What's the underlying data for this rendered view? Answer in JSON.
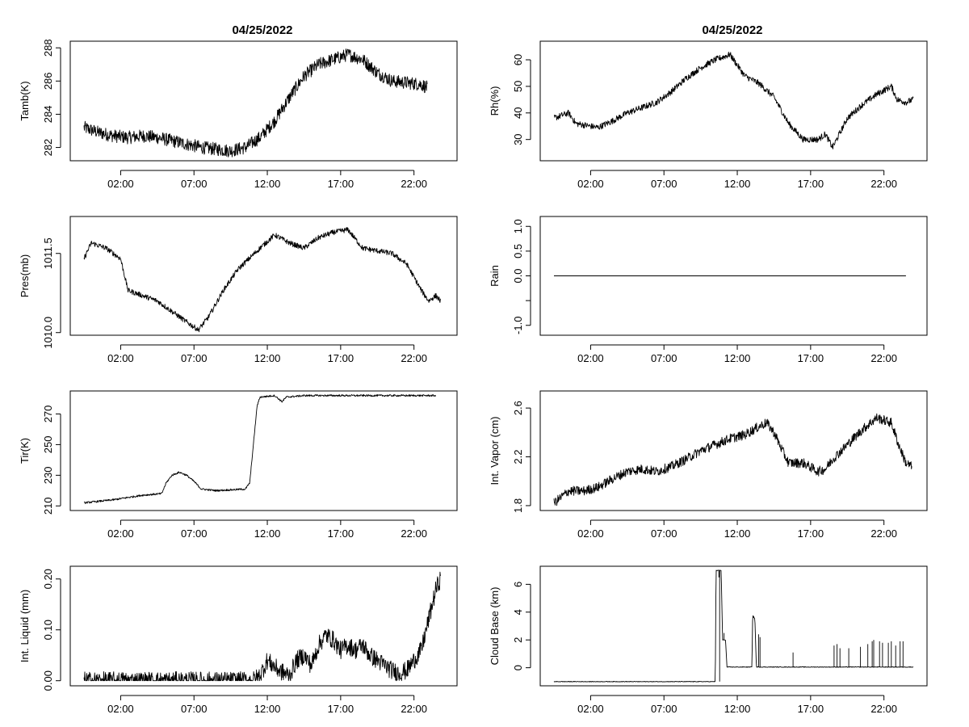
{
  "figure": {
    "date_title": "04/25/2022"
  },
  "chart_data": [
    {
      "id": "tamb",
      "type": "line",
      "title": "04/25/2022",
      "ylabel": "Tamb(K)",
      "ylim": [
        281.2,
        288.4
      ],
      "yticks": [
        282,
        284,
        286,
        288
      ],
      "xticks": [
        "02:00",
        "07:00",
        "12:00",
        "17:00",
        "22:00"
      ],
      "xrange_hours": [
        0,
        24
      ],
      "series": [
        {
          "name": "Tamb",
          "noise": 0.4,
          "points": [
            [
              0,
              283.2
            ],
            [
              1,
              282.9
            ],
            [
              2,
              282.7
            ],
            [
              3,
              282.6
            ],
            [
              4,
              282.7
            ],
            [
              5,
              282.6
            ],
            [
              6,
              282.4
            ],
            [
              7,
              282.2
            ],
            [
              8,
              282.0
            ],
            [
              9,
              281.9
            ],
            [
              10,
              281.8
            ],
            [
              11,
              282.0
            ],
            [
              12,
              282.6
            ],
            [
              13,
              283.6
            ],
            [
              14,
              285.0
            ],
            [
              15,
              286.3
            ],
            [
              16,
              287.0
            ],
            [
              17,
              287.3
            ],
            [
              18,
              287.6
            ],
            [
              19,
              287.3
            ],
            [
              20,
              286.5
            ],
            [
              21,
              286.0
            ],
            [
              22,
              285.9
            ],
            [
              23,
              285.8
            ],
            [
              23.4,
              285.6
            ]
          ]
        }
      ]
    },
    {
      "id": "rh",
      "type": "line",
      "title": "04/25/2022",
      "ylabel": "Rh(%)",
      "ylim": [
        22,
        67
      ],
      "yticks": [
        30,
        40,
        50,
        60
      ],
      "xticks": [
        "02:00",
        "07:00",
        "12:00",
        "17:00",
        "22:00"
      ],
      "xrange_hours": [
        0,
        24
      ],
      "series": [
        {
          "name": "Rh",
          "noise": 1.2,
          "points": [
            [
              0,
              38
            ],
            [
              1,
              40
            ],
            [
              1.5,
              36
            ],
            [
              3,
              34.5
            ],
            [
              4,
              37
            ],
            [
              5,
              40
            ],
            [
              6,
              42
            ],
            [
              7,
              44
            ],
            [
              8,
              48
            ],
            [
              9,
              53
            ],
            [
              10,
              57
            ],
            [
              11,
              60
            ],
            [
              12,
              62
            ],
            [
              12.5,
              58
            ],
            [
              13,
              54
            ],
            [
              14,
              51
            ],
            [
              15,
              46
            ],
            [
              16,
              36
            ],
            [
              17,
              30
            ],
            [
              18,
              30
            ],
            [
              18.5,
              32
            ],
            [
              19,
              27
            ],
            [
              20,
              38
            ],
            [
              21,
              43
            ],
            [
              22,
              47
            ],
            [
              23,
              50
            ],
            [
              23.4,
              45
            ],
            [
              24,
              44
            ],
            [
              24.5,
              45
            ]
          ]
        }
      ]
    },
    {
      "id": "pres",
      "type": "line",
      "title": "",
      "ylabel": "Pres(mb)",
      "ylim": [
        1009.95,
        1012.2
      ],
      "yticks": [
        1010.0,
        1011.5
      ],
      "ytick_labels": [
        "1010.0",
        "1011.5"
      ],
      "xticks": [
        "02:00",
        "07:00",
        "12:00",
        "17:00",
        "22:00"
      ],
      "xrange_hours": [
        0,
        24
      ],
      "series": [
        {
          "name": "Pres",
          "noise": 0.05,
          "points": [
            [
              0,
              1011.4
            ],
            [
              0.5,
              1011.7
            ],
            [
              1.5,
              1011.6
            ],
            [
              2.5,
              1011.4
            ],
            [
              3,
              1010.8
            ],
            [
              4,
              1010.7
            ],
            [
              5,
              1010.6
            ],
            [
              6,
              1010.4
            ],
            [
              7,
              1010.2
            ],
            [
              7.8,
              1010.05
            ],
            [
              8.5,
              1010.3
            ],
            [
              9.5,
              1010.8
            ],
            [
              10.5,
              1011.2
            ],
            [
              12,
              1011.6
            ],
            [
              13,
              1011.85
            ],
            [
              14,
              1011.7
            ],
            [
              15,
              1011.6
            ],
            [
              16,
              1011.8
            ],
            [
              17,
              1011.9
            ],
            [
              18,
              1011.95
            ],
            [
              19,
              1011.6
            ],
            [
              20,
              1011.55
            ],
            [
              21,
              1011.5
            ],
            [
              22,
              1011.3
            ],
            [
              23,
              1010.8
            ],
            [
              23.5,
              1010.6
            ],
            [
              24,
              1010.7
            ],
            [
              24.3,
              1010.6
            ]
          ]
        }
      ]
    },
    {
      "id": "rain",
      "type": "line",
      "title": "",
      "ylabel": "Rain",
      "ylim": [
        -1.2,
        1.2
      ],
      "yticks": [
        -1.0,
        -0.5,
        0.0,
        0.5,
        1.0
      ],
      "ytick_labels": [
        "-1.0",
        "",
        "0.0",
        "0.5",
        "1.0"
      ],
      "xticks": [
        "02:00",
        "07:00",
        "12:00",
        "17:00",
        "22:00"
      ],
      "xrange_hours": [
        0,
        24
      ],
      "series": [
        {
          "name": "Rain",
          "noise": 0,
          "points": [
            [
              0,
              0
            ],
            [
              24,
              0
            ]
          ]
        }
      ]
    },
    {
      "id": "tir",
      "type": "line",
      "title": "",
      "ylabel": "Tir(K)",
      "ylim": [
        207,
        285
      ],
      "yticks": [
        210,
        230,
        250,
        270
      ],
      "xticks": [
        "02:00",
        "07:00",
        "12:00",
        "17:00",
        "22:00"
      ],
      "xrange_hours": [
        0,
        24
      ],
      "series": [
        {
          "name": "Tir",
          "noise": 0.6,
          "points": [
            [
              0,
              212
            ],
            [
              2,
              214
            ],
            [
              4,
              217
            ],
            [
              5.3,
              218
            ],
            [
              5.6,
              225
            ],
            [
              6,
              230
            ],
            [
              6.5,
              232
            ],
            [
              7,
              230
            ],
            [
              7.5,
              226
            ],
            [
              8,
              221
            ],
            [
              9,
              220
            ],
            [
              11,
              221
            ],
            [
              11.3,
              225
            ],
            [
              11.6,
              255
            ],
            [
              11.8,
              275
            ],
            [
              12,
              281
            ],
            [
              13,
              282
            ],
            [
              13.5,
              278
            ],
            [
              13.8,
              281
            ],
            [
              15,
              282
            ],
            [
              24,
              282
            ]
          ]
        }
      ]
    },
    {
      "id": "vapor",
      "type": "line",
      "title": "",
      "ylabel": "Int. Vapor (cm)",
      "ylim": [
        1.76,
        2.74
      ],
      "yticks": [
        1.8,
        2.2,
        2.6
      ],
      "xticks": [
        "02:00",
        "07:00",
        "12:00",
        "17:00",
        "22:00"
      ],
      "xrange_hours": [
        0,
        24
      ],
      "series": [
        {
          "name": "Vapor",
          "noise": 0.04,
          "points": [
            [
              0,
              1.82
            ],
            [
              1,
              1.92
            ],
            [
              2,
              1.92
            ],
            [
              3,
              1.95
            ],
            [
              4,
              2.02
            ],
            [
              5,
              2.08
            ],
            [
              6,
              2.1
            ],
            [
              7,
              2.08
            ],
            [
              8,
              2.12
            ],
            [
              9,
              2.18
            ],
            [
              10,
              2.25
            ],
            [
              11,
              2.3
            ],
            [
              12,
              2.35
            ],
            [
              13,
              2.38
            ],
            [
              14,
              2.45
            ],
            [
              14.5,
              2.48
            ],
            [
              15,
              2.4
            ],
            [
              15.7,
              2.22
            ],
            [
              16,
              2.15
            ],
            [
              17,
              2.15
            ],
            [
              18,
              2.08
            ],
            [
              18.5,
              2.1
            ],
            [
              19,
              2.18
            ],
            [
              20,
              2.3
            ],
            [
              21,
              2.42
            ],
            [
              22,
              2.52
            ],
            [
              23,
              2.48
            ],
            [
              23.5,
              2.3
            ],
            [
              24,
              2.15
            ],
            [
              24.4,
              2.12
            ]
          ]
        }
      ]
    },
    {
      "id": "liquid",
      "type": "line",
      "title": "",
      "ylabel": "Int. Liquid (mm)",
      "ylim": [
        -0.01,
        0.225
      ],
      "yticks": [
        0.0,
        0.1,
        0.2
      ],
      "ytick_labels": [
        "0.00",
        "0.10",
        "0.20"
      ],
      "xticks": [
        "02:00",
        "07:00",
        "12:00",
        "17:00",
        "22:00"
      ],
      "xrange_hours": [
        0,
        24
      ],
      "series": [
        {
          "name": "Liquid",
          "noise": 0.018,
          "floor": 0,
          "points": [
            [
              0,
              0
            ],
            [
              11.5,
              0
            ],
            [
              12,
              0.01
            ],
            [
              12.5,
              0.04
            ],
            [
              13.3,
              0.02
            ],
            [
              14,
              0.01
            ],
            [
              14.5,
              0.04
            ],
            [
              15,
              0.05
            ],
            [
              15.5,
              0.03
            ],
            [
              16,
              0.07
            ],
            [
              16.5,
              0.09
            ],
            [
              17,
              0.08
            ],
            [
              17.5,
              0.06
            ],
            [
              18,
              0.07
            ],
            [
              18.5,
              0.06
            ],
            [
              19,
              0.07
            ],
            [
              19.5,
              0.05
            ],
            [
              20,
              0.04
            ],
            [
              20.5,
              0.03
            ],
            [
              21,
              0.02
            ],
            [
              21.5,
              0.015
            ],
            [
              22,
              0.02
            ],
            [
              22.5,
              0.04
            ],
            [
              23,
              0.06
            ],
            [
              23.5,
              0.12
            ],
            [
              24,
              0.18
            ],
            [
              24.3,
              0.2
            ]
          ]
        }
      ]
    },
    {
      "id": "cloud",
      "type": "line",
      "title": "",
      "ylabel": "Cloud Base (km)",
      "ylim": [
        -1.3,
        7.3
      ],
      "yticks": [
        0,
        2,
        4,
        6
      ],
      "xticks": [
        "02:00",
        "07:00",
        "12:00",
        "17:00",
        "22:00"
      ],
      "xrange_hours": [
        0,
        24
      ],
      "series": [
        {
          "name": "CloudBase",
          "noise": 0.02,
          "points": [
            [
              0,
              -1
            ],
            [
              11,
              -1
            ],
            [
              11.05,
              7
            ],
            [
              11.4,
              7
            ],
            [
              11.5,
              2
            ],
            [
              11.7,
              2
            ],
            [
              11.8,
              0.05
            ],
            [
              13.5,
              0.05
            ],
            [
              13.55,
              3.8
            ],
            [
              13.7,
              3.5
            ],
            [
              13.8,
              0.05
            ],
            [
              24.5,
              0.05
            ]
          ],
          "spikes": [
            [
              11.15,
              7
            ],
            [
              11.25,
              6.5
            ],
            [
              11.3,
              -1
            ],
            [
              11.6,
              2.5
            ],
            [
              13.6,
              3.6
            ],
            [
              13.95,
              2.4
            ],
            [
              14.05,
              2.2
            ],
            [
              16.3,
              1.1
            ],
            [
              19.1,
              1.6
            ],
            [
              19.3,
              1.7
            ],
            [
              19.5,
              1.4
            ],
            [
              20.1,
              1.4
            ],
            [
              20.9,
              1.5
            ],
            [
              21.4,
              1.7
            ],
            [
              21.7,
              1.9
            ],
            [
              21.8,
              2.0
            ],
            [
              22.2,
              1.9
            ],
            [
              22.4,
              1.8
            ],
            [
              22.8,
              1.8
            ],
            [
              23.0,
              1.9
            ],
            [
              23.3,
              1.6
            ],
            [
              23.6,
              1.9
            ],
            [
              23.8,
              1.9
            ]
          ]
        }
      ]
    }
  ]
}
